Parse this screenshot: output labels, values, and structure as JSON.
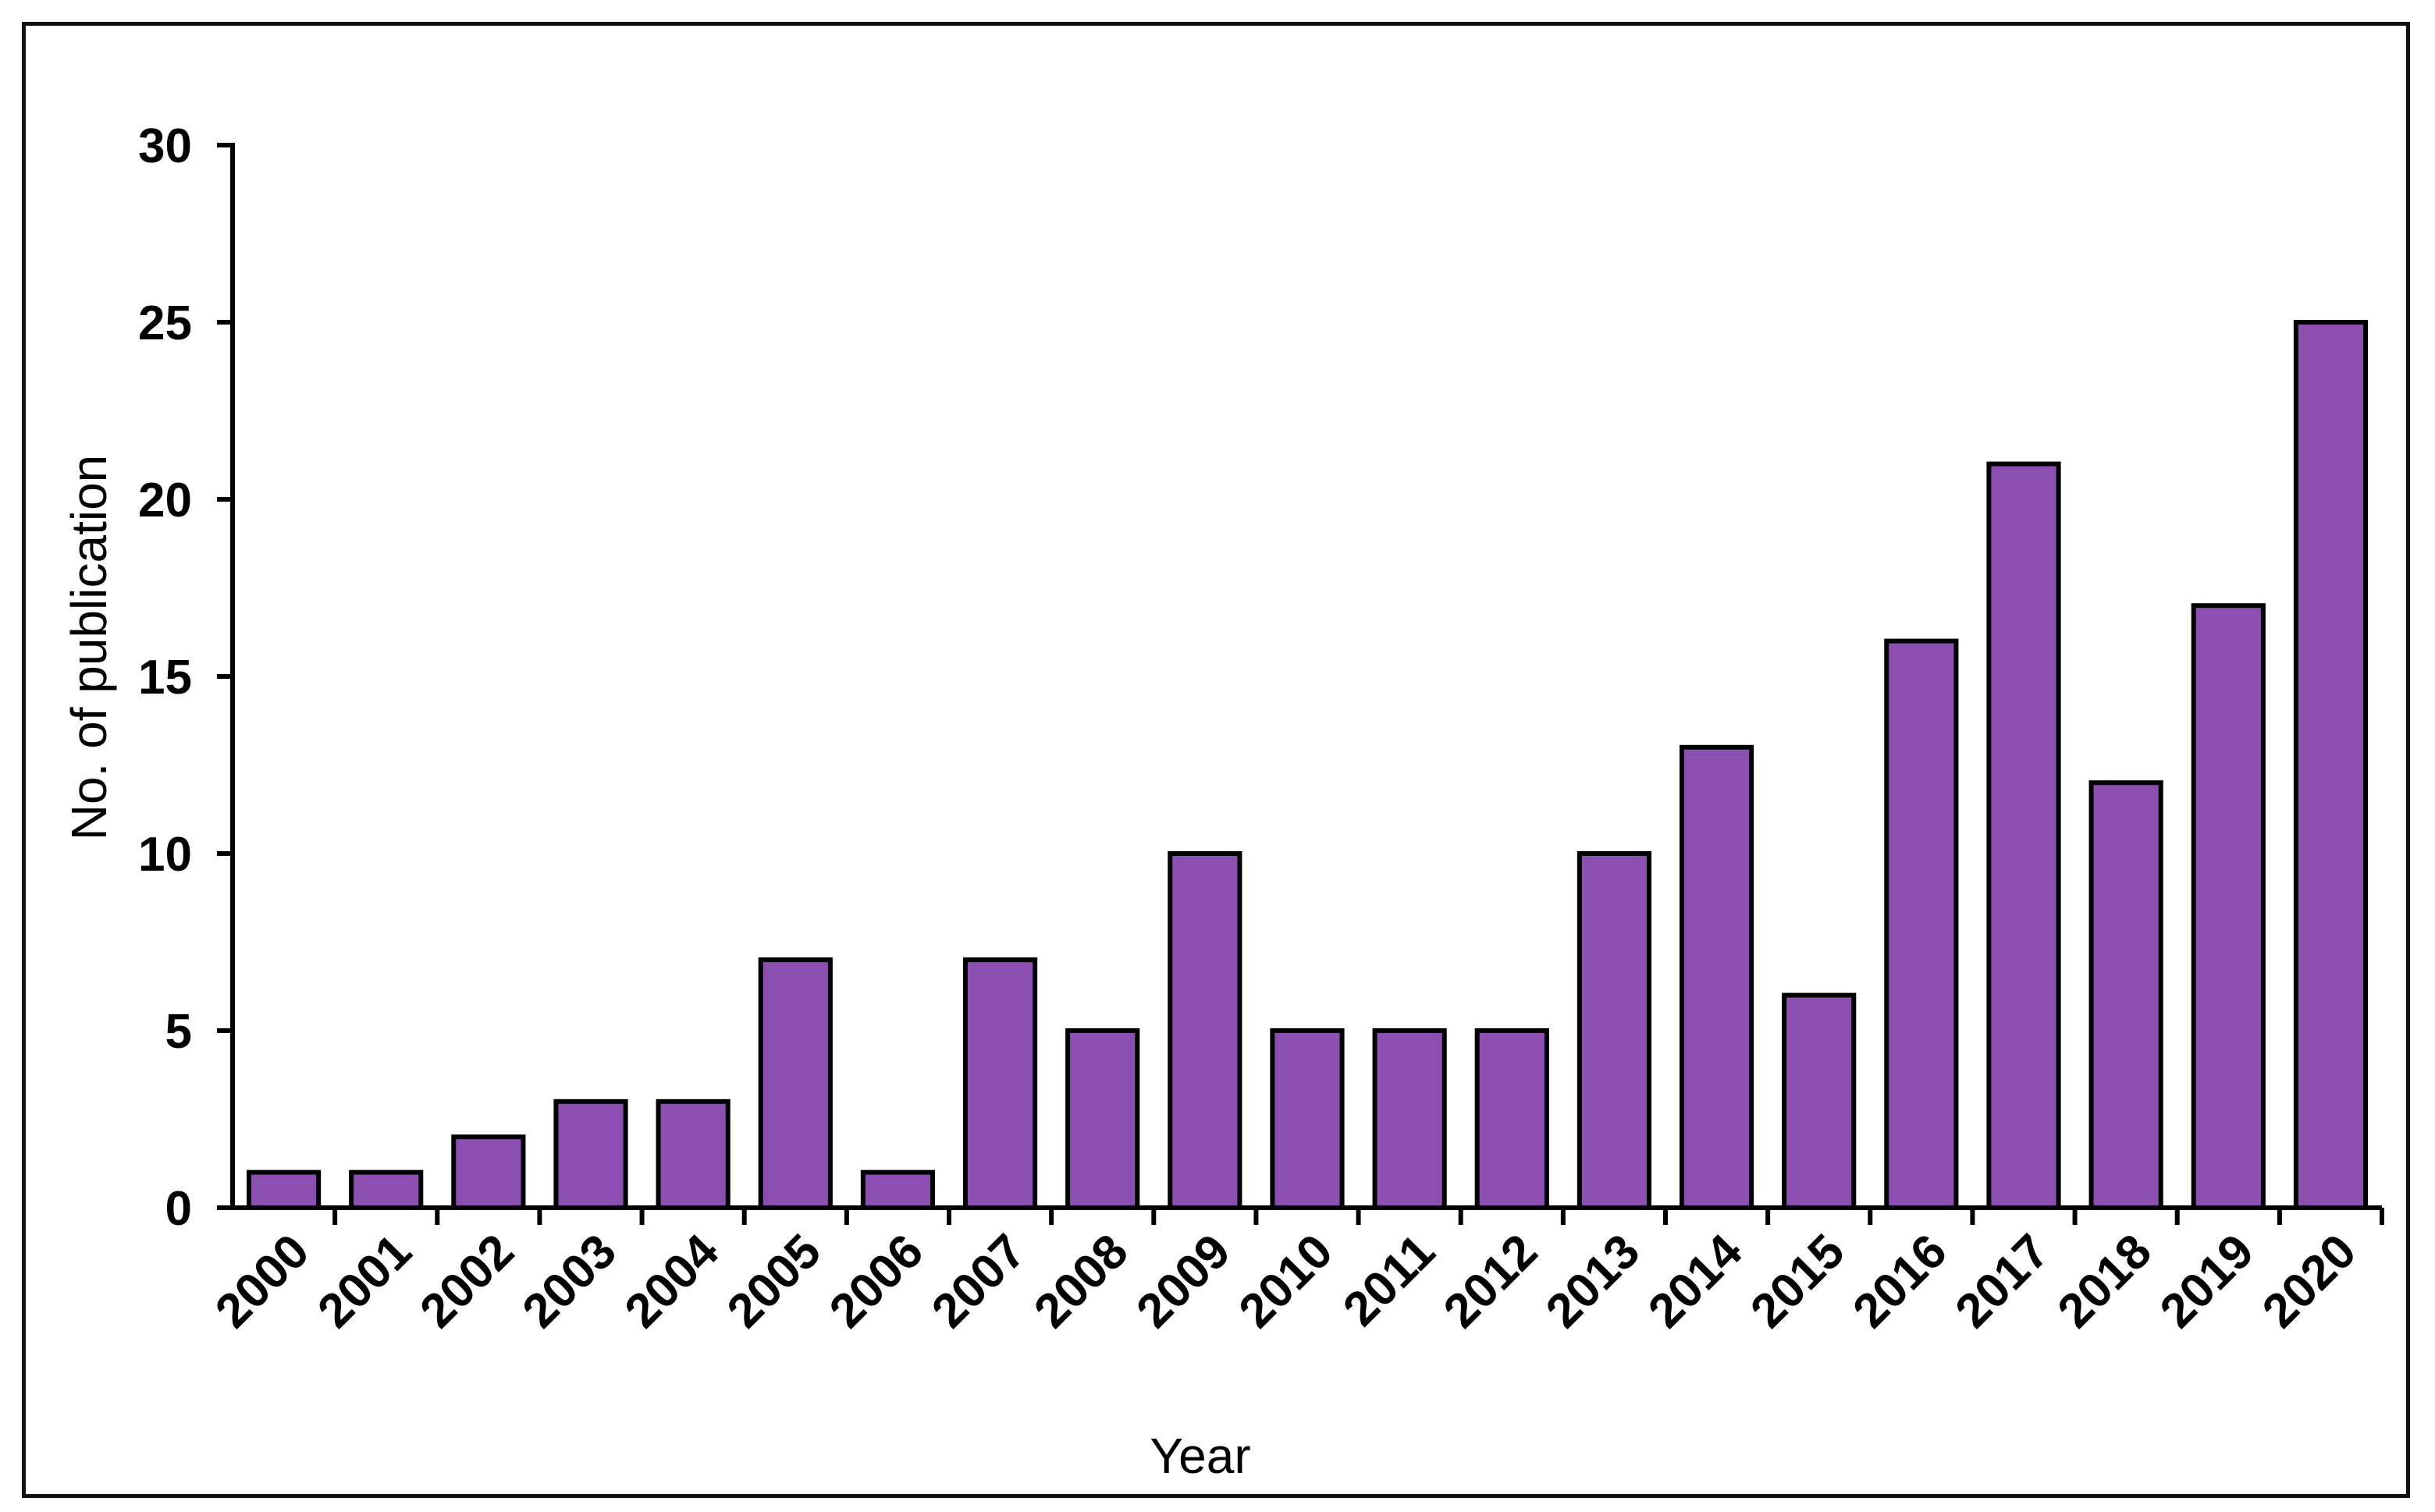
{
  "chart_data": {
    "type": "bar",
    "title": "",
    "xlabel": "Year",
    "ylabel": "No. of publication",
    "ylim": [
      0,
      30
    ],
    "yticks": [
      0,
      5,
      10,
      15,
      20,
      25,
      30
    ],
    "grid": false,
    "legend": "none",
    "bar_color": "#8b4fb1",
    "bar_edge_color": "#000000",
    "categories": [
      "2000",
      "2001",
      "2002",
      "2003",
      "2004",
      "2005",
      "2006",
      "2007",
      "2008",
      "2009",
      "2010",
      "2011",
      "2012",
      "2013",
      "2014",
      "2015",
      "2016",
      "2017",
      "2018",
      "2019",
      "2020"
    ],
    "values": [
      1,
      1,
      2,
      3,
      3,
      7,
      1,
      7,
      5,
      10,
      5,
      5,
      5,
      10,
      13,
      6,
      16,
      21,
      12,
      17,
      25
    ]
  }
}
